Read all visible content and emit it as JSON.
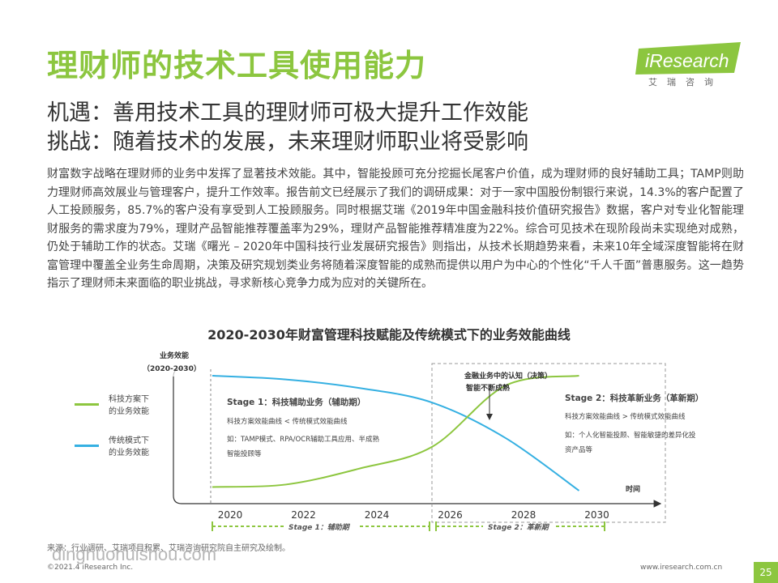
{
  "header": {
    "title": "理财师的技术工具使用能力",
    "logo_text": "iResearch",
    "logo_sub": "艾瑞咨询",
    "subtitle_1": "机遇：善用技术工具的理财师可极大提升工作效能",
    "subtitle_2": "挑战：随着技术的发展，未来理财师职业将受影响"
  },
  "body_text": "财富数字战略在理财师的业务中发挥了显著技术效能。其中，智能投顾可充分挖掘长尾客户价值，成为理财师的良好辅助工具；TAMP则助力理财师高效展业与管理客户，提升工作效率。报告前文已经展示了我们的调研成果：对于一家中国股份制银行来说，14.3%的客户配置了人工投顾服务，85.7%的客户没有享受到人工投顾服务。同时根据艾瑞《2019年中国金融科技价值研究报告》数据，客户对专业化智能理财服务的需求度为79%，理财产品智能推荐覆盖率为29%，理财产品智能推荐精准度为22%。综合可见技术在现阶段尚未实现绝对成熟，仍处于辅助工作的状态。艾瑞《曙光 – 2020年中国科技行业发展研究报告》则指出，从技术长期趋势来看，未来10年全域深度智能将在财富管理中覆盖全业务生命周期，决策及研究规划类业务将随着深度智能的成熟而提供以用户为中心的个性化“千人千面”普惠服务。这一趋势指示了理财师未来面临的职业挑战，寻求新核心竞争力成为应对的关键所在。",
  "chart": {
    "title": "2020-2030年财富管理科技赋能及传统模式下的业务效能曲线",
    "y_label_1": "业务效能",
    "y_label_2": "（2020-2030）",
    "x_label": "时间",
    "legend_tech_1": "科技方案下",
    "legend_tech_2": "的业务效能",
    "legend_trad_1": "传统模式下",
    "legend_trad_2": "的业务效能",
    "stage1_title": "Stage 1：科技辅助业务（辅助期）",
    "stage1_line1": "科技方案效能曲线 < 传统模式效能曲线",
    "stage1_line2": "如：TAMP模式、RPA/OCR辅助工具应用、半成熟",
    "stage1_line3": "智能投顾等",
    "stage2_title": "Stage 2：科技革新业务（革新期）",
    "stage2_line1": "科技方案效能曲线 > 传统模式效能曲线",
    "stage2_line2": "如：个人化智能投顾、智能敏捷的差异化投",
    "stage2_line3": "资产品等",
    "cross_note_1": "金融业务中的认知（决策）",
    "cross_note_2": "智能不断成熟",
    "stage1_band": "Stage 1：辅助期",
    "stage2_band": "Stage 2：革新期",
    "colors": {
      "tech": "#8dc63f",
      "trad": "#35b0e2"
    }
  },
  "chart_data": {
    "type": "line",
    "title": "2020-2030年财富管理科技赋能及传统模式下的业务效能曲线",
    "xlabel": "时间",
    "ylabel": "业务效能（2020-2030）",
    "categories": [
      "2020",
      "2022",
      "2024",
      "2026",
      "2028",
      "2030"
    ],
    "series": [
      {
        "name": "科技方案下的业务效能",
        "values": [
          0.05,
          0.07,
          0.2,
          0.38,
          0.88,
          0.96
        ]
      },
      {
        "name": "传统模式下的业务效能",
        "values": [
          0.96,
          0.93,
          0.86,
          0.74,
          0.45,
          0.02
        ]
      }
    ],
    "grid": false
  },
  "footer": {
    "source": "来源：行业调研、艾瑞项目积累、艾瑞咨询研究院自主研究及绘制。",
    "copyright": "©2021.4 iResearch Inc.",
    "url": "www.iresearch.com.cn",
    "page": "25",
    "watermark": "dinghuohuishou.com"
  }
}
